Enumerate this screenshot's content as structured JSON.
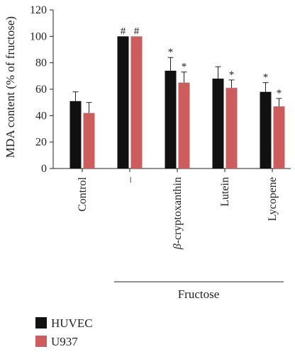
{
  "chart_data": {
    "type": "bar",
    "ylabel": "MDA content (% of fructose)",
    "ylim": [
      0,
      120
    ],
    "yticks": [
      "0",
      "20",
      "40",
      "60",
      "80",
      "100",
      "120"
    ],
    "categories": [
      "Control",
      "–",
      "β-cryptoxanthin",
      "Lutein",
      "Lycopene"
    ],
    "group_label": "Fructose",
    "series": [
      {
        "name": "HUVEC",
        "color": "#111111",
        "values": [
          51,
          100,
          74,
          68,
          58
        ],
        "errors": [
          7,
          0,
          10,
          9,
          7
        ],
        "marks": [
          "",
          "#",
          "*",
          "",
          "*"
        ]
      },
      {
        "name": "U937",
        "color": "#cd5c5c",
        "values": [
          42,
          100,
          65,
          61,
          47
        ],
        "errors": [
          8,
          0,
          8,
          6,
          6
        ],
        "marks": [
          "",
          "#",
          "*",
          "*",
          "*"
        ]
      }
    ],
    "legend_position": "bottom-left",
    "grid": false
  }
}
